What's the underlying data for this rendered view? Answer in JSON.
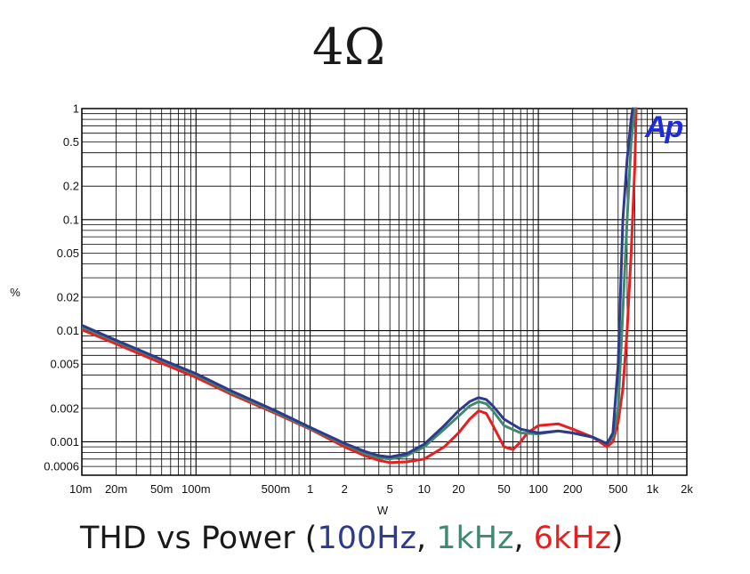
{
  "chart_data": {
    "type": "line",
    "title": "4Ω",
    "caption": {
      "prefix": "THD vs Power (",
      "sep1": ", ",
      "sep2": ", ",
      "suffix": ")"
    },
    "xlabel": "W",
    "ylabel": "%",
    "x_scale": "log",
    "y_scale": "log",
    "xlim": [
      0.01,
      2000
    ],
    "ylim": [
      0.0005,
      1
    ],
    "grid": true,
    "logo": "Ap",
    "x_ticks": [
      {
        "v": 0.01,
        "label": "10m"
      },
      {
        "v": 0.02,
        "label": "20m"
      },
      {
        "v": 0.05,
        "label": "50m"
      },
      {
        "v": 0.1,
        "label": "100m"
      },
      {
        "v": 0.5,
        "label": "500m"
      },
      {
        "v": 1,
        "label": "1"
      },
      {
        "v": 2,
        "label": "2"
      },
      {
        "v": 5,
        "label": "5"
      },
      {
        "v": 10,
        "label": "10"
      },
      {
        "v": 20,
        "label": "20"
      },
      {
        "v": 50,
        "label": "50"
      },
      {
        "v": 100,
        "label": "100"
      },
      {
        "v": 200,
        "label": "200"
      },
      {
        "v": 500,
        "label": "500"
      },
      {
        "v": 1000,
        "label": "1k"
      },
      {
        "v": 2000,
        "label": "2k"
      }
    ],
    "y_ticks": [
      {
        "v": 1,
        "label": "1"
      },
      {
        "v": 0.5,
        "label": "0.5"
      },
      {
        "v": 0.2,
        "label": "0.2"
      },
      {
        "v": 0.1,
        "label": "0.1"
      },
      {
        "v": 0.05,
        "label": "0.05"
      },
      {
        "v": 0.02,
        "label": "0.02"
      },
      {
        "v": 0.01,
        "label": "0.01"
      },
      {
        "v": 0.005,
        "label": "0.005"
      },
      {
        "v": 0.002,
        "label": "0.002"
      },
      {
        "v": 0.001,
        "label": "0.001"
      },
      {
        "v": 0.0006,
        "label": "0.0006"
      }
    ],
    "series": [
      {
        "name": "100Hz",
        "color": "#2e3a8c",
        "points": [
          [
            0.01,
            0.0112
          ],
          [
            0.02,
            0.0082
          ],
          [
            0.05,
            0.0055
          ],
          [
            0.1,
            0.0041
          ],
          [
            0.2,
            0.0029
          ],
          [
            0.5,
            0.0019
          ],
          [
            1,
            0.00135
          ],
          [
            2,
            0.00097
          ],
          [
            3,
            0.00082
          ],
          [
            4,
            0.00075
          ],
          [
            5,
            0.00073
          ],
          [
            7,
            0.00078
          ],
          [
            10,
            0.00095
          ],
          [
            15,
            0.0014
          ],
          [
            20,
            0.0019
          ],
          [
            25,
            0.0023
          ],
          [
            30,
            0.0025
          ],
          [
            35,
            0.0024
          ],
          [
            40,
            0.0021
          ],
          [
            50,
            0.0016
          ],
          [
            70,
            0.0013
          ],
          [
            100,
            0.0012
          ],
          [
            150,
            0.00125
          ],
          [
            200,
            0.0012
          ],
          [
            300,
            0.0011
          ],
          [
            400,
            0.00096
          ],
          [
            450,
            0.0012
          ],
          [
            500,
            0.005
          ],
          [
            550,
            0.1
          ],
          [
            600,
            0.35
          ],
          [
            650,
            0.8
          ],
          [
            670,
            1.0
          ]
        ]
      },
      {
        "name": "1kHz",
        "color": "#3f8a6e",
        "points": [
          [
            0.01,
            0.0108
          ],
          [
            0.02,
            0.008
          ],
          [
            0.05,
            0.0054
          ],
          [
            0.1,
            0.004
          ],
          [
            0.2,
            0.0028
          ],
          [
            0.5,
            0.00185
          ],
          [
            1,
            0.00132
          ],
          [
            2,
            0.00095
          ],
          [
            3,
            0.00079
          ],
          [
            4,
            0.00072
          ],
          [
            5,
            0.0007
          ],
          [
            7,
            0.00075
          ],
          [
            10,
            0.0009
          ],
          [
            15,
            0.0013
          ],
          [
            20,
            0.0017
          ],
          [
            25,
            0.0021
          ],
          [
            30,
            0.0023
          ],
          [
            35,
            0.0022
          ],
          [
            40,
            0.0019
          ],
          [
            50,
            0.0014
          ],
          [
            70,
            0.0012
          ],
          [
            100,
            0.00118
          ],
          [
            150,
            0.00125
          ],
          [
            200,
            0.0012
          ],
          [
            300,
            0.0011
          ],
          [
            400,
            0.00096
          ],
          [
            450,
            0.0011
          ],
          [
            500,
            0.002
          ],
          [
            550,
            0.015
          ],
          [
            600,
            0.1
          ],
          [
            650,
            0.5
          ],
          [
            700,
            1.0
          ]
        ]
      },
      {
        "name": "6kHz",
        "color": "#e62020",
        "points": [
          [
            0.01,
            0.0102
          ],
          [
            0.02,
            0.0076
          ],
          [
            0.05,
            0.0051
          ],
          [
            0.1,
            0.0038
          ],
          [
            0.2,
            0.0027
          ],
          [
            0.5,
            0.0018
          ],
          [
            1,
            0.0013
          ],
          [
            2,
            0.0009
          ],
          [
            3,
            0.00075
          ],
          [
            4,
            0.00068
          ],
          [
            5,
            0.00065
          ],
          [
            7,
            0.00066
          ],
          [
            10,
            0.0007
          ],
          [
            15,
            0.0009
          ],
          [
            20,
            0.0012
          ],
          [
            25,
            0.0016
          ],
          [
            30,
            0.0019
          ],
          [
            35,
            0.0018
          ],
          [
            40,
            0.0014
          ],
          [
            50,
            0.0009
          ],
          [
            60,
            0.00085
          ],
          [
            70,
            0.001
          ],
          [
            80,
            0.0012
          ],
          [
            100,
            0.0014
          ],
          [
            150,
            0.00145
          ],
          [
            200,
            0.0013
          ],
          [
            300,
            0.0011
          ],
          [
            400,
            0.0009
          ],
          [
            450,
            0.001
          ],
          [
            500,
            0.0015
          ],
          [
            550,
            0.003
          ],
          [
            600,
            0.01
          ],
          [
            650,
            0.05
          ],
          [
            700,
            0.3
          ],
          [
            720,
            1.0
          ]
        ]
      }
    ]
  }
}
